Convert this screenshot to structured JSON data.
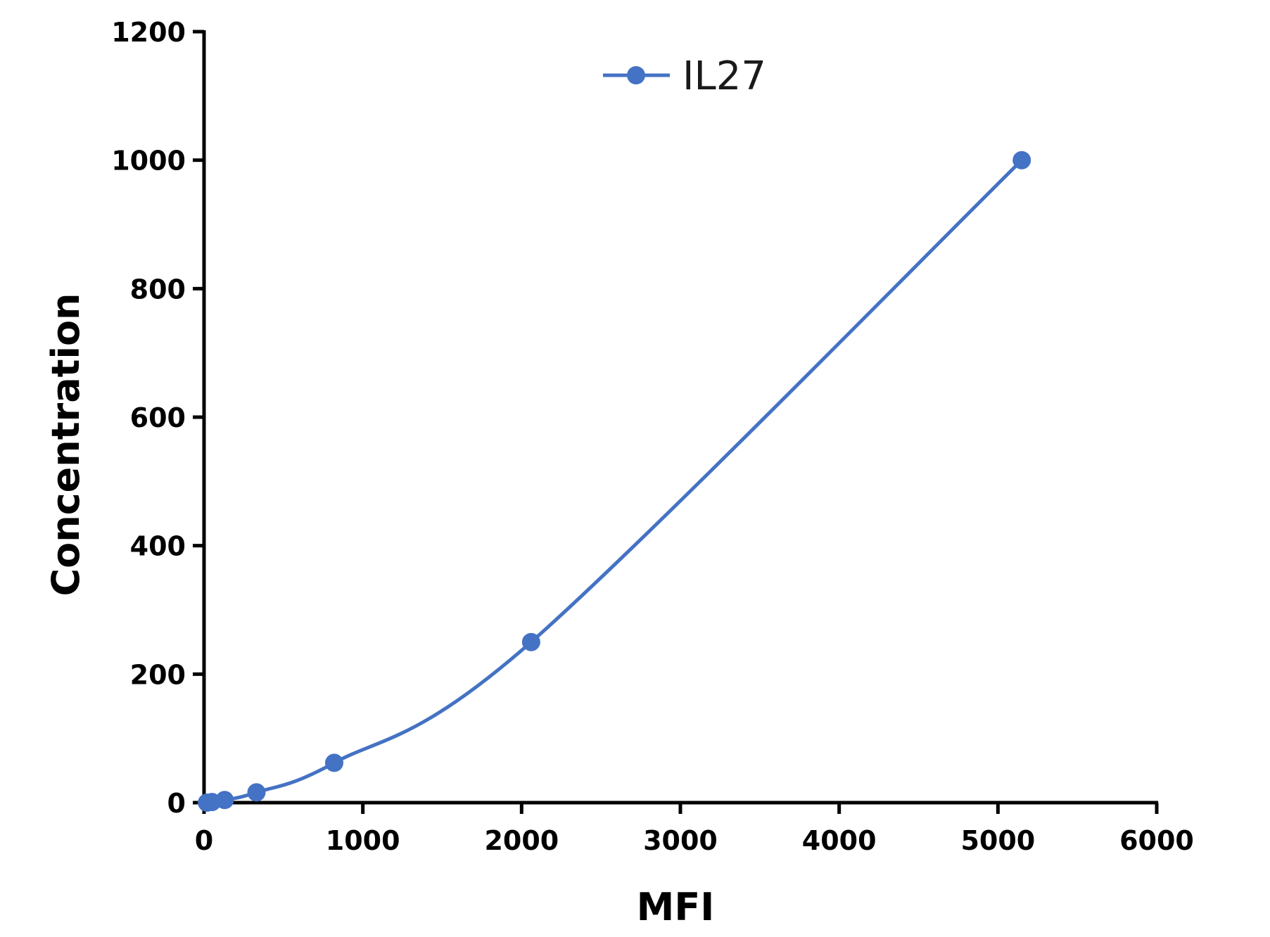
{
  "chart_data": {
    "type": "line",
    "xlabel": "MFI",
    "ylabel": "Concentration",
    "xlim": [
      0,
      6000
    ],
    "ylim": [
      0,
      1200
    ],
    "x_ticks": [
      0,
      1000,
      2000,
      3000,
      4000,
      5000,
      6000
    ],
    "y_ticks": [
      0,
      200,
      400,
      600,
      800,
      1000,
      1200
    ],
    "grid": false,
    "legend_position": "top-center",
    "series": [
      {
        "name": "IL27",
        "color": "#4472C4",
        "marker": "circle",
        "x": [
          18,
          50,
          130,
          330,
          820,
          2060,
          5150
        ],
        "y": [
          0,
          1,
          4,
          16,
          62,
          250,
          1000
        ]
      }
    ]
  }
}
